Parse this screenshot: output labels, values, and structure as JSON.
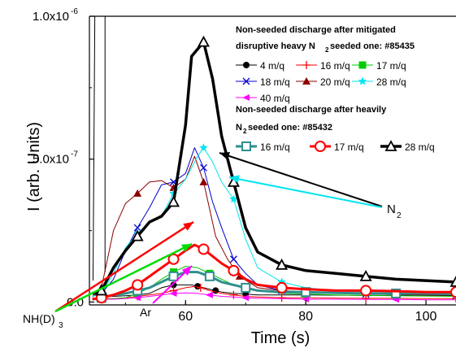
{
  "chart_data": {
    "type": "line",
    "xlabel": "Time (s)",
    "ylabel": "I (arb. Units)",
    "xlim": [
      44,
      105
    ],
    "ylim": [
      -1e-08,
      1e-06
    ],
    "x_ticks": [
      60,
      80,
      100
    ],
    "x_tick_labels": [
      "60",
      "80",
      "100"
    ],
    "y_ticks": [
      0,
      5e-07,
      1e-06
    ],
    "y_tick_labels": [
      "0.0",
      "5.0x10",
      "1.0x10"
    ],
    "y_tick_exponents": [
      "",
      "-7",
      "-6"
    ],
    "legend_group_1_line1": "Non-seeded discharge after mitigated",
    "legend_group_1_line2": "disruptive heavy N",
    "legend_group_1_line2_sub": "2",
    "legend_group_1_line2_rest": " seeded one: #85435",
    "legend_group_2_line1": "Non-seeded discharge after heavily",
    "legend_group_2_line2": "N",
    "legend_group_2_line2_sub": "2",
    "legend_group_2_line2_rest": " seeded one: #85432",
    "annotations": {
      "n2_label": "N",
      "n2_sub": "2",
      "nhd3_label": "NH(D)",
      "nhd3_sub": "3",
      "ar_label": "Ar"
    },
    "series": [
      {
        "name": "4 m/q",
        "group": 1,
        "color": "#000000",
        "marker": "circle",
        "width": 1,
        "x": [
          44.5,
          46,
          48,
          50,
          52,
          54,
          56,
          58,
          59.5,
          61,
          62,
          63,
          64,
          65,
          66,
          68,
          70,
          72,
          76,
          80,
          85,
          90,
          95,
          100,
          105
        ],
        "y": [
          3e-08,
          2e-08,
          2e-08,
          2.2e-08,
          2.5e-08,
          3e-08,
          5e-08,
          6e-08,
          6e-08,
          6e-08,
          5.5e-08,
          5e-08,
          4.5e-08,
          4e-08,
          3.5e-08,
          3e-08,
          2.8e-08,
          2.5e-08,
          2.5e-08,
          2.5e-08,
          2.4e-08,
          2.3e-08,
          2.3e-08,
          2.2e-08,
          2.2e-08
        ]
      },
      {
        "name": "16 m/q",
        "group": 1,
        "color": "#ff0000",
        "marker": "plus",
        "width": 1,
        "x": [
          44.5,
          46,
          48,
          50,
          52,
          54,
          56,
          58,
          60,
          61.5,
          62.5,
          64,
          66,
          68,
          70,
          72,
          76,
          80,
          85,
          90,
          95,
          100,
          105
        ],
        "y": [
          1.5e-08,
          1.2e-08,
          1.2e-08,
          1.5e-08,
          2e-08,
          2.5e-08,
          3e-08,
          4e-08,
          5e-08,
          5.5e-08,
          5e-08,
          4e-08,
          3e-08,
          2.5e-08,
          2e-08,
          1.8e-08,
          1.5e-08,
          1.5e-08,
          1.4e-08,
          1.3e-08,
          1.3e-08,
          1.2e-08,
          1.2e-08
        ]
      },
      {
        "name": "17 m/q",
        "group": 1,
        "color": "#00cc00",
        "marker": "square",
        "width": 1,
        "x": [
          44.5,
          46,
          48,
          50,
          52,
          54,
          56,
          58,
          60,
          62,
          64,
          66,
          68,
          70,
          72,
          76,
          80,
          85,
          90,
          95,
          100,
          105
        ],
        "y": [
          1e-08,
          1e-08,
          1.2e-08,
          1.5e-08,
          3e-08,
          5e-08,
          8e-08,
          1.05e-07,
          1.25e-07,
          1.2e-07,
          1e-07,
          8e-08,
          6e-08,
          5e-08,
          4e-08,
          3e-08,
          2.8e-08,
          2.5e-08,
          2.3e-08,
          2.2e-08,
          2.1e-08,
          2e-08
        ]
      },
      {
        "name": "18 m/q",
        "group": 1,
        "color": "#0000cc",
        "marker": "x",
        "width": 1,
        "x": [
          44.5,
          46,
          48,
          50,
          52,
          54,
          56,
          58,
          60,
          61.5,
          63,
          64.5,
          66,
          68,
          70,
          72,
          76,
          80,
          85,
          90,
          95,
          100,
          105
        ],
        "y": [
          2e-08,
          3e-08,
          8e-08,
          1.8e-07,
          2.6e-07,
          3.3e-07,
          4.1e-07,
          4.2e-07,
          4.5e-07,
          5.4e-07,
          4.7e-07,
          3.5e-07,
          2.6e-07,
          1.5e-07,
          1e-07,
          6e-08,
          4e-08,
          3.5e-08,
          3e-08,
          2.8e-08,
          2.6e-08,
          2.5e-08,
          2.4e-08
        ]
      },
      {
        "name": "20 m/q",
        "group": 1,
        "color": "#8b0000",
        "marker": "triangle",
        "width": 1,
        "x": [
          44.5,
          46,
          48,
          50,
          52,
          54,
          56,
          58,
          60,
          61.5,
          63,
          65,
          67,
          69,
          72,
          76,
          80,
          85,
          90,
          95,
          100,
          105
        ],
        "y": [
          2e-08,
          5e-08,
          2.5e-07,
          3.45e-07,
          3.8e-07,
          4.2e-07,
          4.25e-07,
          4e-07,
          4.3e-07,
          5.1e-07,
          4.2e-07,
          2.3e-07,
          1.5e-07,
          9e-08,
          5e-08,
          4e-08,
          3.5e-08,
          3e-08,
          2.8e-08,
          2.6e-08,
          2.5e-08,
          2.4e-08
        ]
      },
      {
        "name": "28 m/q",
        "group": 1,
        "color": "#00e5ee",
        "marker": "star",
        "width": 1,
        "x": [
          44.5,
          46,
          48,
          50,
          52,
          54,
          56,
          58,
          60,
          62,
          63,
          64.5,
          66,
          68,
          70,
          72,
          76,
          80,
          85,
          90,
          95,
          100,
          105
        ],
        "y": [
          2e-08,
          3e-08,
          1e-07,
          1.9e-07,
          2.4e-07,
          2.8e-07,
          3e-07,
          3.8e-07,
          4.3e-07,
          5.1e-07,
          5.4e-07,
          4.9e-07,
          4.2e-07,
          3.6e-07,
          2.2e-07,
          1.2e-07,
          7e-08,
          5e-08,
          4e-08,
          3.5e-08,
          3e-08,
          2.8e-08,
          2.7e-08
        ]
      },
      {
        "name": "40 m/q",
        "group": 1,
        "color": "#ff00ff",
        "marker": "tri-left",
        "width": 1,
        "x": [
          44.5,
          46,
          48,
          50,
          52,
          54,
          56,
          58,
          60,
          62,
          64,
          66,
          68,
          70,
          72,
          76,
          80,
          85,
          90,
          95,
          100,
          105
        ],
        "y": [
          1e-08,
          1e-08,
          1e-08,
          1.2e-08,
          1.5e-08,
          2e-08,
          2.5e-08,
          3e-08,
          3.2e-08,
          3e-08,
          2.5e-08,
          2e-08,
          1.8e-08,
          1.5e-08,
          1.3e-08,
          1.2e-08,
          1e-08,
          1e-08,
          9e-09,
          9e-09,
          8e-09,
          8e-09
        ]
      },
      {
        "name": "16 m/q",
        "group": 2,
        "color": "#2f8f8f",
        "marker": "square",
        "width": 3,
        "x": [
          44.5,
          46,
          48,
          50,
          52,
          54,
          56,
          58,
          60,
          62,
          64,
          66,
          68,
          70,
          72,
          76,
          80,
          85,
          90,
          95,
          100,
          105
        ],
        "y": [
          1e-08,
          1.5e-08,
          2.5e-08,
          3e-08,
          4e-08,
          5e-08,
          7e-08,
          9e-08,
          1.05e-07,
          1.05e-07,
          9e-08,
          7e-08,
          6e-08,
          5e-08,
          4e-08,
          3.5e-08,
          3.5e-08,
          3.2e-08,
          3e-08,
          3e-08,
          3e-08,
          2.8e-08
        ]
      },
      {
        "name": "17 m/q",
        "group": 2,
        "color": "#ff0000",
        "marker": "circle-open",
        "width": 3,
        "x": [
          44.5,
          46,
          48,
          50,
          52,
          54,
          56,
          58,
          60,
          61.5,
          63,
          64.5,
          66,
          68,
          70,
          72,
          76,
          80,
          85,
          90,
          95,
          100,
          105
        ],
        "y": [
          1e-08,
          1.5e-08,
          2.5e-08,
          4e-08,
          6e-08,
          9e-08,
          1.2e-07,
          1.5e-07,
          1.8e-07,
          2e-07,
          1.85e-07,
          1.6e-07,
          1.35e-07,
          1.1e-07,
          8e-08,
          6e-08,
          5e-08,
          4.5e-08,
          4e-08,
          4e-08,
          3.8e-08,
          3.5e-08,
          3.5e-08
        ]
      },
      {
        "name": "28 m/q",
        "group": 2,
        "color": "#000000",
        "marker": "triangle-open",
        "width": 3.5,
        "x": [
          44.5,
          46,
          48,
          50,
          52,
          54,
          56,
          58,
          60,
          61,
          63,
          64.5,
          66,
          68,
          70,
          72,
          76,
          80,
          85,
          90,
          95,
          100,
          105
        ],
        "y": [
          3e-08,
          4e-08,
          1.2e-07,
          1.8e-07,
          2.3e-07,
          2.8e-07,
          3e-07,
          3.5e-07,
          6.2e-07,
          8.6e-07,
          9.1e-07,
          7.8e-07,
          5.8e-07,
          4.2e-07,
          2.6e-07,
          1.75e-07,
          1.3e-07,
          1.1e-07,
          1e-07,
          9e-08,
          8e-08,
          7.5e-08,
          7e-08
        ]
      }
    ]
  }
}
